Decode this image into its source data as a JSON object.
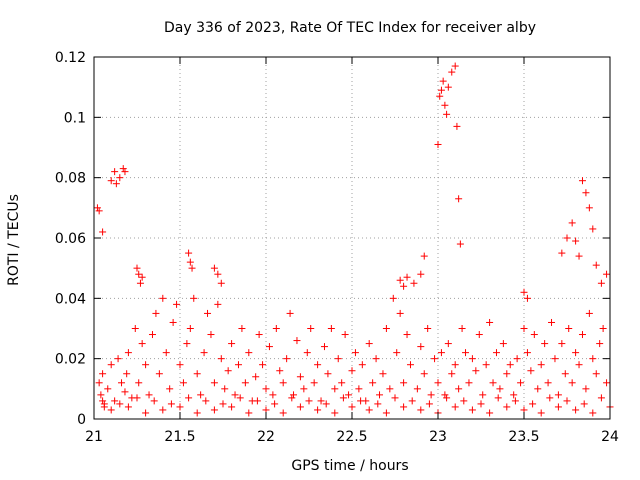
{
  "chart_data": {
    "type": "scatter",
    "title": "Day 336 of 2023, Rate Of TEC Index for receiver alby",
    "xlabel": "GPS time / hours",
    "ylabel": "ROTI / TECUs",
    "xlim": [
      21,
      24
    ],
    "ylim": [
      0,
      0.12
    ],
    "x_ticks": [
      21,
      21.5,
      22,
      22.5,
      23,
      23.5,
      24
    ],
    "x_tick_labels": [
      "21",
      "21.5",
      "22",
      "22.5",
      "23",
      "23.5",
      "24"
    ],
    "y_ticks": [
      0,
      0.02,
      0.04,
      0.06,
      0.08,
      0.1,
      0.12
    ],
    "y_tick_labels": [
      "0",
      "0.02",
      "0.04",
      "0.06",
      "0.08",
      "0.1",
      "0.12"
    ],
    "grid": true,
    "marker": "+",
    "color": "#ff0000",
    "series": [
      {
        "name": "ROTI",
        "x": [
          21.03,
          21.04,
          21.05,
          21.06,
          21.08,
          21.1,
          21.12,
          21.14,
          21.16,
          21.18,
          21.19,
          21.2,
          21.22,
          21.24,
          21.26,
          21.28,
          21.3,
          21.32,
          21.34,
          21.36,
          21.38,
          21.4,
          21.42,
          21.44,
          21.46,
          21.48,
          21.5,
          21.52,
          21.54,
          21.56,
          21.58,
          21.6,
          21.62,
          21.64,
          21.66,
          21.68,
          21.7,
          21.72,
          21.74,
          21.76,
          21.78,
          21.8,
          21.82,
          21.84,
          21.86,
          21.88,
          21.9,
          21.92,
          21.94,
          21.96,
          21.98,
          22.0,
          22.02,
          22.04,
          22.06,
          22.08,
          22.1,
          22.12,
          22.14,
          22.16,
          22.18,
          22.2,
          22.22,
          22.24,
          22.26,
          22.28,
          22.3,
          22.32,
          22.34,
          22.36,
          22.38,
          22.4,
          22.42,
          22.44,
          22.46,
          22.48,
          22.5,
          22.52,
          22.54,
          22.56,
          22.58,
          22.6,
          22.62,
          22.64,
          22.66,
          22.68,
          22.7,
          22.72,
          22.74,
          22.76,
          22.78,
          22.8,
          22.82,
          22.84,
          22.86,
          22.88,
          22.9,
          22.92,
          22.94,
          22.96,
          22.98,
          23.0,
          23.02,
          23.04,
          23.06,
          23.08,
          23.1,
          23.12,
          23.14,
          23.16,
          23.18,
          23.2,
          23.22,
          23.24,
          23.26,
          23.28,
          23.3,
          23.32,
          23.34,
          23.36,
          23.38,
          23.4,
          23.42,
          23.44,
          23.46,
          23.48,
          23.5,
          23.52,
          23.54,
          23.56,
          23.58,
          23.6,
          23.62,
          23.64,
          23.66,
          23.68,
          23.7,
          23.72,
          23.74,
          23.76,
          23.78,
          23.8,
          23.82,
          23.84,
          23.86,
          23.88,
          23.9,
          23.92,
          23.94,
          23.96,
          23.98,
          21.02,
          21.03,
          21.05,
          21.1,
          21.12,
          21.13,
          21.15,
          21.17,
          21.18,
          21.25,
          21.26,
          21.27,
          21.28,
          21.55,
          21.56,
          21.57,
          21.7,
          21.72,
          21.74,
          22.78,
          22.8,
          22.82,
          22.9,
          22.92,
          23.0,
          23.01,
          23.02,
          23.03,
          23.04,
          23.05,
          23.06,
          23.08,
          23.1,
          23.11,
          23.12,
          23.13,
          23.5,
          23.52,
          23.72,
          23.75,
          23.78,
          23.8,
          23.82,
          23.84,
          23.86,
          23.88,
          23.9,
          23.92,
          23.95,
          23.98,
          21.06,
          21.1,
          21.2,
          21.3,
          21.4,
          21.5,
          21.6,
          21.7,
          21.8,
          21.9,
          22.0,
          22.1,
          22.2,
          22.3,
          22.4,
          22.5,
          22.6,
          22.7,
          22.8,
          22.9,
          23.0,
          23.1,
          23.2,
          23.3,
          23.4,
          23.5,
          23.6,
          23.7,
          23.8,
          23.9,
          24.0,
          21.05,
          21.15,
          21.25,
          21.35,
          21.45,
          21.55,
          21.65,
          21.75,
          21.85,
          21.95,
          22.05,
          22.15,
          22.25,
          22.35,
          22.45,
          22.55,
          22.65,
          22.75,
          22.85,
          22.95,
          23.05,
          23.15,
          23.25,
          23.35,
          23.45,
          23.55,
          23.65,
          23.75,
          23.85,
          23.95
        ],
        "y": [
          0.012,
          0.008,
          0.015,
          0.005,
          0.01,
          0.018,
          0.006,
          0.02,
          0.012,
          0.009,
          0.015,
          0.022,
          0.007,
          0.03,
          0.012,
          0.025,
          0.018,
          0.008,
          0.028,
          0.035,
          0.015,
          0.04,
          0.022,
          0.01,
          0.032,
          0.038,
          0.018,
          0.012,
          0.025,
          0.03,
          0.04,
          0.015,
          0.008,
          0.022,
          0.035,
          0.028,
          0.012,
          0.038,
          0.02,
          0.01,
          0.016,
          0.025,
          0.008,
          0.018,
          0.03,
          0.012,
          0.022,
          0.006,
          0.014,
          0.028,
          0.018,
          0.01,
          0.024,
          0.008,
          0.03,
          0.016,
          0.012,
          0.02,
          0.035,
          0.008,
          0.026,
          0.014,
          0.01,
          0.022,
          0.03,
          0.012,
          0.018,
          0.006,
          0.024,
          0.015,
          0.03,
          0.01,
          0.02,
          0.012,
          0.028,
          0.008,
          0.016,
          0.022,
          0.01,
          0.018,
          0.006,
          0.025,
          0.012,
          0.02,
          0.008,
          0.015,
          0.03,
          0.01,
          0.04,
          0.022,
          0.035,
          0.012,
          0.028,
          0.018,
          0.045,
          0.01,
          0.024,
          0.015,
          0.03,
          0.008,
          0.02,
          0.012,
          0.022,
          0.008,
          0.025,
          0.015,
          0.018,
          0.01,
          0.03,
          0.022,
          0.012,
          0.02,
          0.016,
          0.028,
          0.008,
          0.018,
          0.032,
          0.012,
          0.022,
          0.01,
          0.025,
          0.015,
          0.018,
          0.008,
          0.02,
          0.012,
          0.03,
          0.022,
          0.016,
          0.028,
          0.01,
          0.018,
          0.025,
          0.012,
          0.032,
          0.02,
          0.008,
          0.025,
          0.015,
          0.03,
          0.012,
          0.022,
          0.018,
          0.028,
          0.01,
          0.035,
          0.02,
          0.015,
          0.025,
          0.03,
          0.012,
          0.07,
          0.069,
          0.062,
          0.079,
          0.082,
          0.078,
          0.08,
          0.083,
          0.082,
          0.05,
          0.048,
          0.045,
          0.047,
          0.055,
          0.052,
          0.05,
          0.05,
          0.048,
          0.045,
          0.046,
          0.044,
          0.047,
          0.048,
          0.054,
          0.091,
          0.107,
          0.109,
          0.112,
          0.104,
          0.101,
          0.11,
          0.115,
          0.117,
          0.097,
          0.073,
          0.058,
          0.042,
          0.04,
          0.055,
          0.06,
          0.065,
          0.059,
          0.054,
          0.079,
          0.075,
          0.07,
          0.063,
          0.051,
          0.045,
          0.048,
          0.004,
          0.003,
          0.004,
          0.002,
          0.003,
          0.004,
          0.002,
          0.003,
          0.004,
          0.002,
          0.003,
          0.002,
          0.004,
          0.003,
          0.002,
          0.004,
          0.003,
          0.002,
          0.004,
          0.003,
          0.002,
          0.004,
          0.003,
          0.002,
          0.004,
          0.003,
          0.002,
          0.004,
          0.003,
          0.002,
          0.004,
          0.006,
          0.005,
          0.007,
          0.006,
          0.005,
          0.007,
          0.006,
          0.005,
          0.007,
          0.006,
          0.005,
          0.007,
          0.006,
          0.005,
          0.007,
          0.006,
          0.005,
          0.007,
          0.006,
          0.005,
          0.007,
          0.006,
          0.005,
          0.007,
          0.006,
          0.005,
          0.007,
          0.006,
          0.005,
          0.007
        ]
      }
    ]
  }
}
